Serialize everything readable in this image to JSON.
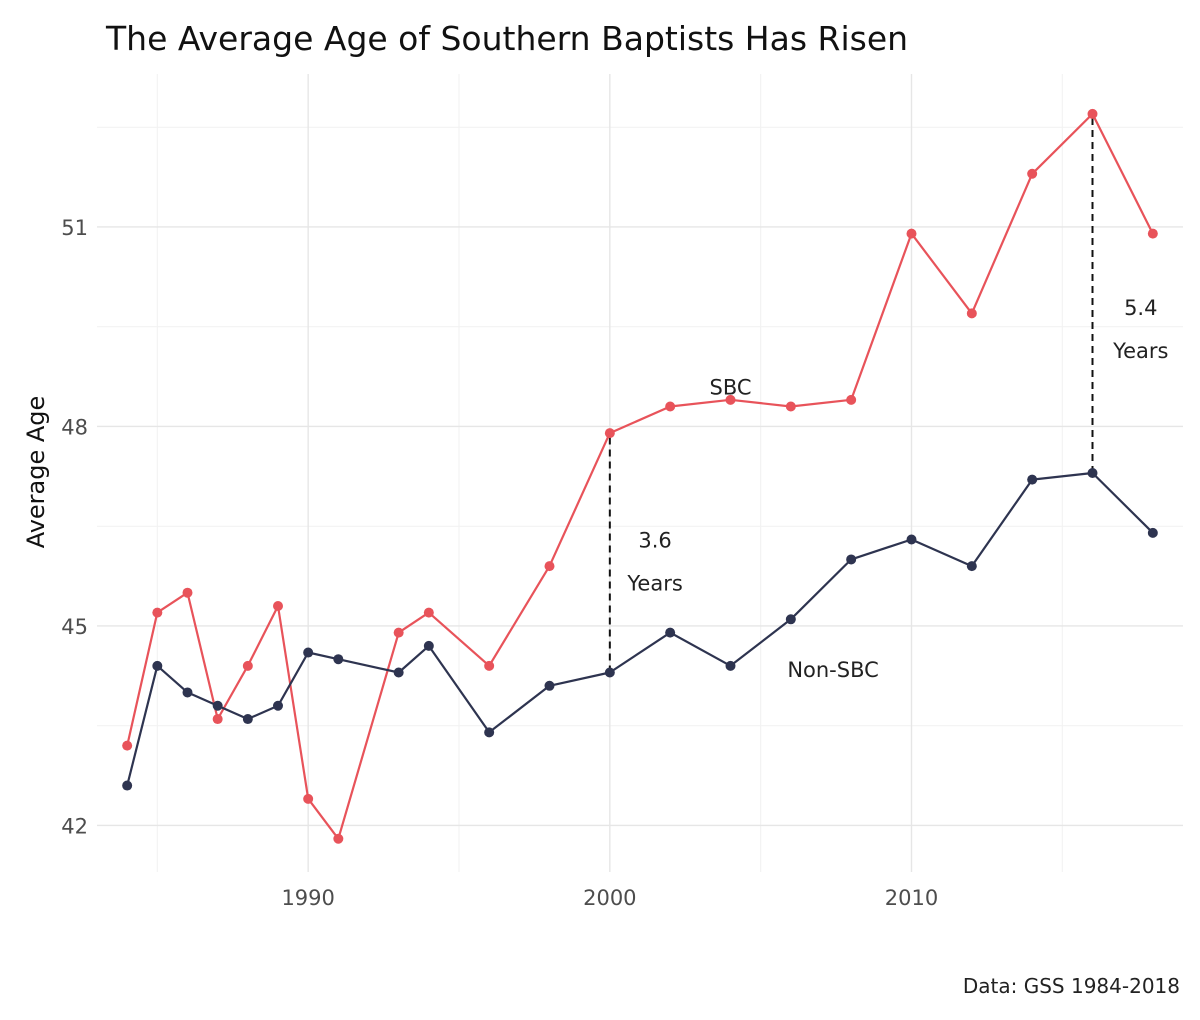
{
  "chart_data": {
    "type": "line",
    "title": "The Average Age of Southern Baptists Has Risen",
    "xlabel": "",
    "ylabel": "Average Age",
    "caption": "Data: GSS 1984-2018",
    "xlim": [
      1983,
      2019
    ],
    "ylim": [
      41.3,
      53.3
    ],
    "x_ticks": [
      1990,
      2000,
      2010
    ],
    "x_tick_labels": [
      "1990",
      "2000",
      "2010"
    ],
    "x_minor_ticks": [
      1985,
      1995,
      2005,
      2015
    ],
    "y_ticks": [
      42,
      45,
      48,
      51
    ],
    "y_tick_labels": [
      "42",
      "45",
      "48",
      "51"
    ],
    "y_minor_ticks": [
      43.5,
      46.5,
      49.5,
      52.5
    ],
    "grid": true,
    "legend": "none",
    "series": [
      {
        "name": "SBC",
        "color": "#e8535a",
        "points": [
          {
            "x": 1984,
            "y": 43.2
          },
          {
            "x": 1985,
            "y": 45.2
          },
          {
            "x": 1986,
            "y": 45.5
          },
          {
            "x": 1987,
            "y": 43.6
          },
          {
            "x": 1988,
            "y": 44.4
          },
          {
            "x": 1989,
            "y": 45.3
          },
          {
            "x": 1990,
            "y": 42.4
          },
          {
            "x": 1991,
            "y": 41.8
          },
          {
            "x": 1993,
            "y": 44.9
          },
          {
            "x": 1994,
            "y": 45.2
          },
          {
            "x": 1996,
            "y": 44.4
          },
          {
            "x": 1998,
            "y": 45.9
          },
          {
            "x": 2000,
            "y": 47.9
          },
          {
            "x": 2002,
            "y": 48.3
          },
          {
            "x": 2004,
            "y": 48.4
          },
          {
            "x": 2006,
            "y": 48.3
          },
          {
            "x": 2008,
            "y": 48.4
          },
          {
            "x": 2010,
            "y": 50.9
          },
          {
            "x": 2012,
            "y": 49.7
          },
          {
            "x": 2014,
            "y": 51.8
          },
          {
            "x": 2016,
            "y": 52.7
          },
          {
            "x": 2018,
            "y": 50.9
          }
        ]
      },
      {
        "name": "Non-SBC",
        "color": "#2e3450",
        "points": [
          {
            "x": 1984,
            "y": 42.6
          },
          {
            "x": 1985,
            "y": 44.4
          },
          {
            "x": 1986,
            "y": 44.0
          },
          {
            "x": 1987,
            "y": 43.8
          },
          {
            "x": 1988,
            "y": 43.6
          },
          {
            "x": 1989,
            "y": 43.8
          },
          {
            "x": 1990,
            "y": 44.6
          },
          {
            "x": 1991,
            "y": 44.5
          },
          {
            "x": 1993,
            "y": 44.3
          },
          {
            "x": 1994,
            "y": 44.7
          },
          {
            "x": 1996,
            "y": 43.4
          },
          {
            "x": 1998,
            "y": 44.1
          },
          {
            "x": 2000,
            "y": 44.3
          },
          {
            "x": 2002,
            "y": 44.9
          },
          {
            "x": 2004,
            "y": 44.4
          },
          {
            "x": 2006,
            "y": 45.1
          },
          {
            "x": 2008,
            "y": 46.0
          },
          {
            "x": 2010,
            "y": 46.3
          },
          {
            "x": 2012,
            "y": 45.9
          },
          {
            "x": 2014,
            "y": 47.2
          },
          {
            "x": 2016,
            "y": 47.3
          },
          {
            "x": 2018,
            "y": 46.4
          }
        ]
      }
    ],
    "annotations": [
      {
        "name": "gap-2000",
        "x": 2000,
        "y_from": 44.3,
        "y_to": 47.9,
        "value": "3.6",
        "unit": "Years",
        "label_x": 2001.5,
        "label_y_value": 46.3,
        "label_y_unit": 45.65
      },
      {
        "name": "gap-2016",
        "x": 2016,
        "y_from": 47.3,
        "y_to": 52.7,
        "value": "5.4",
        "unit": "Years",
        "label_x": 2017.6,
        "label_y_value": 49.8,
        "label_y_unit": 49.15
      }
    ],
    "series_labels": [
      {
        "text": "SBC",
        "x": 2004.0,
        "y": 48.6
      },
      {
        "text": "Non-SBC",
        "x": 2007.4,
        "y": 44.35
      }
    ]
  }
}
